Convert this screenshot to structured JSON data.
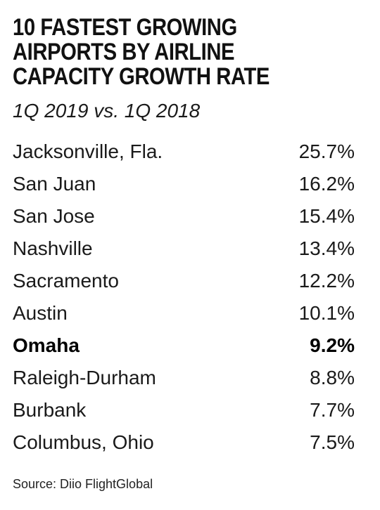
{
  "chart_data": {
    "type": "table",
    "title": "10 FASTEST GROWING\nAIRPORTS BY AIRLINE\nCAPACITY GROWTH RATE",
    "subtitle": "1Q 2019 vs. 1Q 2018",
    "rows": [
      {
        "airport": "Jacksonville, Fla.",
        "label": "25.7%",
        "value": 25.7,
        "highlight": false
      },
      {
        "airport": "San Juan",
        "label": "16.2%",
        "value": 16.2,
        "highlight": false
      },
      {
        "airport": "San Jose",
        "label": "15.4%",
        "value": 15.4,
        "highlight": false
      },
      {
        "airport": "Nashville",
        "label": "13.4%",
        "value": 13.4,
        "highlight": false
      },
      {
        "airport": "Sacramento",
        "label": "12.2%",
        "value": 12.2,
        "highlight": false
      },
      {
        "airport": "Austin",
        "label": "10.1%",
        "value": 10.1,
        "highlight": false
      },
      {
        "airport": "Omaha",
        "label": "9.2%",
        "value": 9.2,
        "highlight": true
      },
      {
        "airport": "Raleigh-Durham",
        "label": "8.8%",
        "value": 8.8,
        "highlight": false
      },
      {
        "airport": "Burbank",
        "label": "7.7%",
        "value": 7.7,
        "highlight": false
      },
      {
        "airport": "Columbus, Ohio",
        "label": "7.5%",
        "value": 7.5,
        "highlight": false
      }
    ],
    "source": "Source: Diio FlightGlobal"
  }
}
